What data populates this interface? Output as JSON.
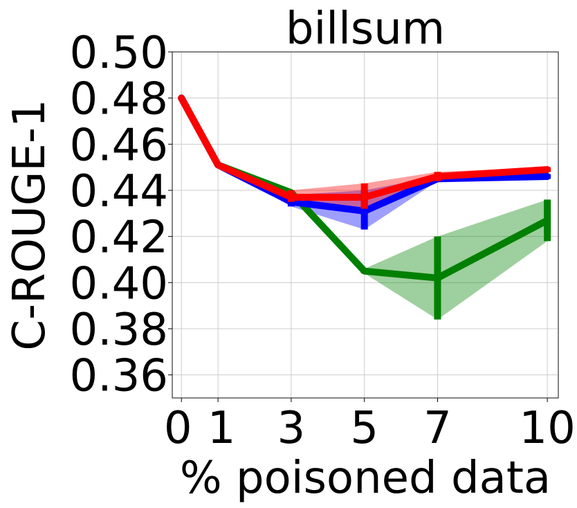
{
  "chart_data": {
    "type": "line",
    "title": "billsum",
    "xlabel": "% poisoned data",
    "ylabel": "C-ROUGE-1",
    "x": [
      0,
      1,
      3,
      5,
      7,
      10
    ],
    "x_tick_labels": [
      "0",
      "1",
      "3",
      "5",
      "7",
      "10"
    ],
    "xlim": [
      -0.25,
      10.3
    ],
    "ylim": [
      0.35,
      0.5
    ],
    "y_ticks": [
      0.36,
      0.38,
      0.4,
      0.42,
      0.44,
      0.46,
      0.48,
      0.5
    ],
    "y_tick_labels": [
      "0.36",
      "0.38",
      "0.40",
      "0.42",
      "0.44",
      "0.46",
      "0.48",
      "0.50"
    ],
    "grid": true,
    "legend": "none",
    "series": [
      {
        "color": "#008000",
        "values": [
          0.48,
          0.451,
          0.439,
          0.405,
          0.402,
          0.427
        ],
        "lower": [
          0.48,
          0.451,
          0.438,
          0.404,
          0.384,
          0.418
        ],
        "upper": [
          0.48,
          0.451,
          0.44,
          0.406,
          0.42,
          0.436
        ]
      },
      {
        "color": "#0000ff",
        "values": [
          0.48,
          0.451,
          0.435,
          0.431,
          0.445,
          0.446
        ],
        "lower": [
          0.48,
          0.451,
          0.433,
          0.423,
          0.444,
          0.445
        ],
        "upper": [
          0.48,
          0.451,
          0.438,
          0.44,
          0.446,
          0.447
        ]
      },
      {
        "color": "#ff0000",
        "values": [
          0.48,
          0.451,
          0.437,
          0.437,
          0.446,
          0.449
        ],
        "lower": [
          0.48,
          0.451,
          0.435,
          0.432,
          0.444,
          0.448
        ],
        "upper": [
          0.48,
          0.451,
          0.44,
          0.443,
          0.448,
          0.45
        ]
      }
    ]
  }
}
